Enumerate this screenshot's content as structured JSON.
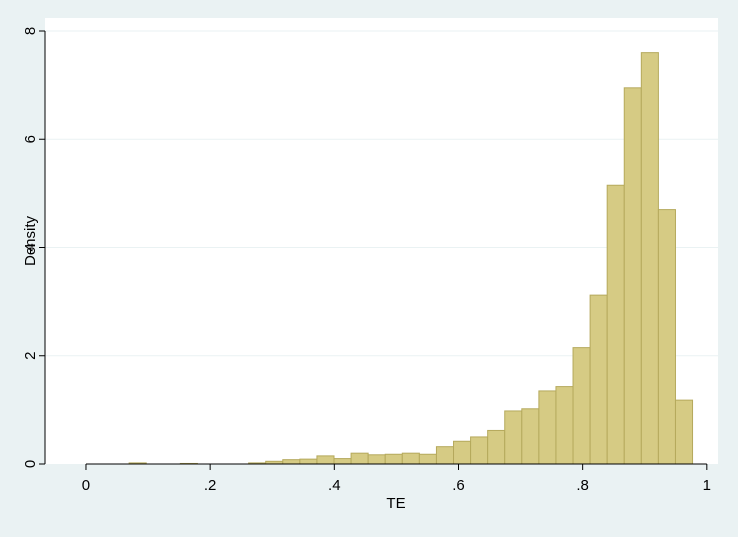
{
  "chart_data": {
    "type": "histogram",
    "xlabel": "TE",
    "ylabel": "Density",
    "bins": [
      0.0695,
      0.097,
      0.1245,
      0.152,
      0.1795,
      0.207,
      0.2345,
      0.262,
      0.2895,
      0.317,
      0.3445,
      0.372,
      0.3995,
      0.427,
      0.4545,
      0.482,
      0.5095,
      0.537,
      0.5645,
      0.592,
      0.6195,
      0.647,
      0.6745,
      0.702,
      0.7295,
      0.757,
      0.7845,
      0.812,
      0.8395,
      0.867,
      0.8945,
      0.922,
      0.9495,
      0.977
    ],
    "values": [
      0.02,
      0,
      0,
      0.01,
      0,
      0,
      0,
      0.02,
      0.05,
      0.08,
      0.09,
      0.15,
      0.1,
      0.2,
      0.17,
      0.18,
      0.2,
      0.18,
      0.32,
      0.42,
      0.5,
      0.62,
      0.98,
      1.02,
      1.35,
      1.43,
      2.15,
      3.12,
      5.15,
      6.95,
      7.6,
      4.7,
      1.18
    ],
    "color": "#d6cb84",
    "xlim": [
      -0.066,
      1.018
    ],
    "xticks": [
      0,
      {
        "value": 0.2,
        "label": ".2"
      },
      {
        "value": 0.4,
        "label": ".4"
      },
      {
        "value": 0.6,
        "label": ".6"
      },
      {
        "value": 0.8,
        "label": ".8"
      },
      1
    ],
    "ylim": [
      0,
      8.24
    ],
    "yticks": [
      0,
      2,
      4,
      6,
      8
    ],
    "grid": true
  }
}
